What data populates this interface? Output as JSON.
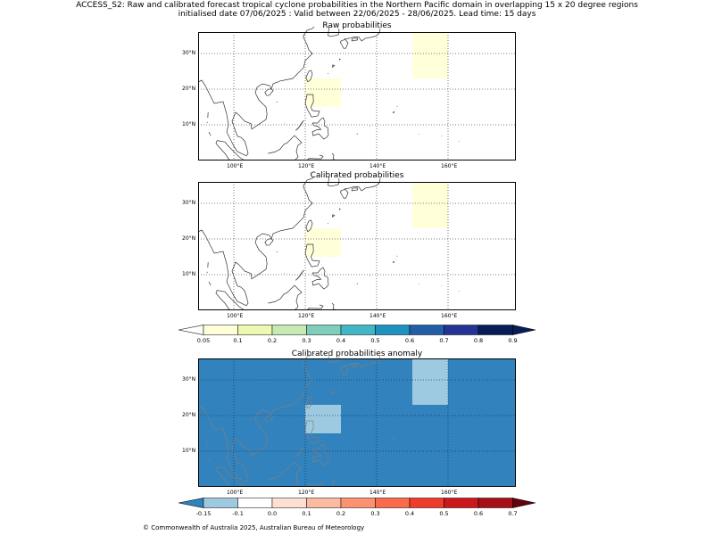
{
  "header": {
    "line1": "ACCESS_S2: Raw and calibrated forecast tropical cyclone probabilities in the Northern Pacific domain in overlapping 15 x 20 degree regions",
    "line2": "initialised date 07/06/2025 :  Valid between 22/06/2025 - 28/06/2025. Lead time: 15 days"
  },
  "axes": {
    "lat_labels": [
      "30°N",
      "20°N",
      "10°N"
    ],
    "lon_labels": [
      "100°E",
      "120°E",
      "140°E",
      "160°E"
    ]
  },
  "panels": [
    {
      "id": "raw",
      "title": "Raw probabilities",
      "style": "prob",
      "regions": [
        {
          "lon": [
            150,
            160
          ],
          "lat": [
            23,
            37
          ],
          "value": 0.05,
          "color": "#ffffd9"
        },
        {
          "lon": [
            120,
            130
          ],
          "lat": [
            15,
            23
          ],
          "value": 0.05,
          "color": "#ffffd9"
        },
        {
          "lon": [
            120,
            121.5
          ],
          "lat": [
            23,
            23.5
          ],
          "value": 0.05,
          "color": "#ffffd9"
        }
      ]
    },
    {
      "id": "calibrated",
      "title": "Calibrated probabilities",
      "style": "prob",
      "regions": [
        {
          "lon": [
            150,
            160
          ],
          "lat": [
            23,
            37
          ],
          "value": 0.05,
          "color": "#ffffd9"
        },
        {
          "lon": [
            120,
            130
          ],
          "lat": [
            15,
            23
          ],
          "value": 0.05,
          "color": "#ffffd9"
        }
      ]
    },
    {
      "id": "anomaly",
      "title": "Calibrated probabilities anomaly",
      "style": "anom",
      "background": "#3182bd",
      "regions": [
        {
          "lon": [
            150,
            160
          ],
          "lat": [
            23,
            37
          ],
          "value": -0.1,
          "color": "#9ecae1"
        },
        {
          "lon": [
            120,
            130
          ],
          "lat": [
            15,
            23
          ],
          "value": -0.1,
          "color": "#9ecae1"
        }
      ]
    }
  ],
  "colorbar_prob": {
    "ticks": [
      "0.05",
      "0.1",
      "0.2",
      "0.3",
      "0.4",
      "0.5",
      "0.6",
      "0.7",
      "0.8",
      "0.9"
    ],
    "under_color": "#ffffff",
    "over_color": "#081d58",
    "colors": [
      "#ffffd9",
      "#edf8b1",
      "#c7e9b4",
      "#7fcdbb",
      "#41b6c4",
      "#1d91c0",
      "#225ea8",
      "#253494",
      "#081d58"
    ]
  },
  "colorbar_anom": {
    "ticks": [
      "-0.15",
      "-0.1",
      "0.0",
      "0.1",
      "0.2",
      "0.3",
      "0.4",
      "0.5",
      "0.6",
      "0.7"
    ],
    "under_color": "#3182bd",
    "over_color": "#67000d",
    "colors": [
      "#9ecae1",
      "#ffffff",
      "#fee0d2",
      "#fcbba1",
      "#fc9272",
      "#fb6a4a",
      "#ef3b2c",
      "#cb181d",
      "#a50f15"
    ]
  },
  "footer": "© Commonwealth of Australia 2025, Australian Bureau of Meteorology"
}
